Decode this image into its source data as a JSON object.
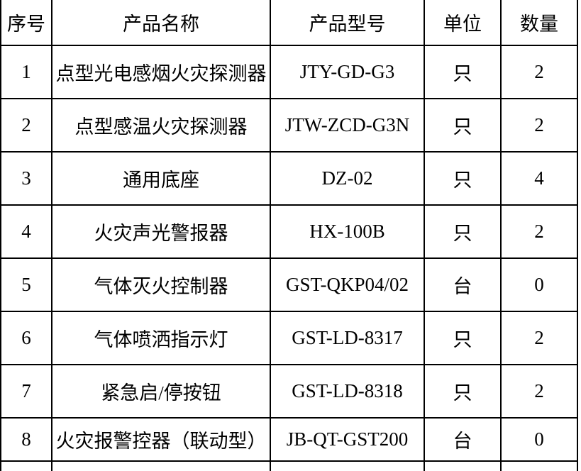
{
  "table": {
    "columns": {
      "no": "序号",
      "name": "产品名称",
      "model": "产品型号",
      "unit": "单位",
      "qty": "数量"
    },
    "rows": [
      {
        "no": "1",
        "name": "点型光电感烟火灾探测器",
        "model": "JTY-GD-G3",
        "unit": "只",
        "qty": "2"
      },
      {
        "no": "2",
        "name": "点型感温火灾探测器",
        "model": "JTW-ZCD-G3N",
        "unit": "只",
        "qty": "2"
      },
      {
        "no": "3",
        "name": "通用底座",
        "model": "DZ-02",
        "unit": "只",
        "qty": "4"
      },
      {
        "no": "4",
        "name": "火灾声光警报器",
        "model": "HX-100B",
        "unit": "只",
        "qty": "2"
      },
      {
        "no": "5",
        "name": "气体灭火控制器",
        "model": "GST-QKP04/02",
        "unit": "台",
        "qty": "0"
      },
      {
        "no": "6",
        "name": "气体喷洒指示灯",
        "model": "GST-LD-8317",
        "unit": "只",
        "qty": "2"
      },
      {
        "no": "7",
        "name": "紧急启/停按钮",
        "model": "GST-LD-8318",
        "unit": "只",
        "qty": "2"
      },
      {
        "no": "8",
        "name": "火灾报警控器（联动型）",
        "model": "JB-QT-GST200",
        "unit": "台",
        "qty": "0"
      }
    ],
    "colors": {
      "border": "#000000",
      "text": "#000000",
      "background": "#ffffff"
    }
  }
}
